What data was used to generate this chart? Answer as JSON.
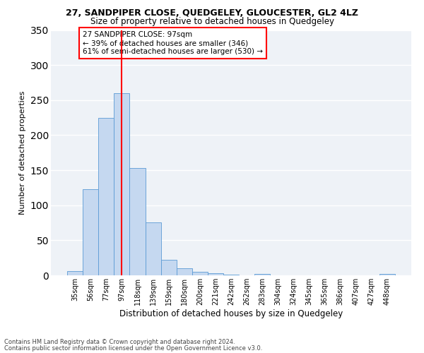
{
  "title": "27, SANDPIPER CLOSE, QUEDGELEY, GLOUCESTER, GL2 4LZ",
  "subtitle": "Size of property relative to detached houses in Quedgeley",
  "xlabel": "Distribution of detached houses by size in Quedgeley",
  "ylabel": "Number of detached properties",
  "categories": [
    "35sqm",
    "56sqm",
    "77sqm",
    "97sqm",
    "118sqm",
    "139sqm",
    "159sqm",
    "180sqm",
    "200sqm",
    "221sqm",
    "242sqm",
    "262sqm",
    "283sqm",
    "304sqm",
    "324sqm",
    "345sqm",
    "365sqm",
    "386sqm",
    "407sqm",
    "427sqm",
    "448sqm"
  ],
  "values": [
    6,
    123,
    225,
    260,
    153,
    76,
    22,
    10,
    5,
    3,
    1,
    0,
    2,
    0,
    0,
    0,
    0,
    0,
    0,
    0,
    2
  ],
  "bar_color": "#c5d8f0",
  "bar_edge_color": "#5b9bd5",
  "red_line_index": 3,
  "annotation_text": "27 SANDPIPER CLOSE: 97sqm\n← 39% of detached houses are smaller (346)\n61% of semi-detached houses are larger (530) →",
  "annotation_box_color": "white",
  "annotation_box_edge_color": "red",
  "ylim": [
    0,
    350
  ],
  "yticks": [
    0,
    50,
    100,
    150,
    200,
    250,
    300,
    350
  ],
  "background_color": "#eef2f7",
  "grid_color": "white",
  "footer_line1": "Contains HM Land Registry data © Crown copyright and database right 2024.",
  "footer_line2": "Contains public sector information licensed under the Open Government Licence v3.0."
}
